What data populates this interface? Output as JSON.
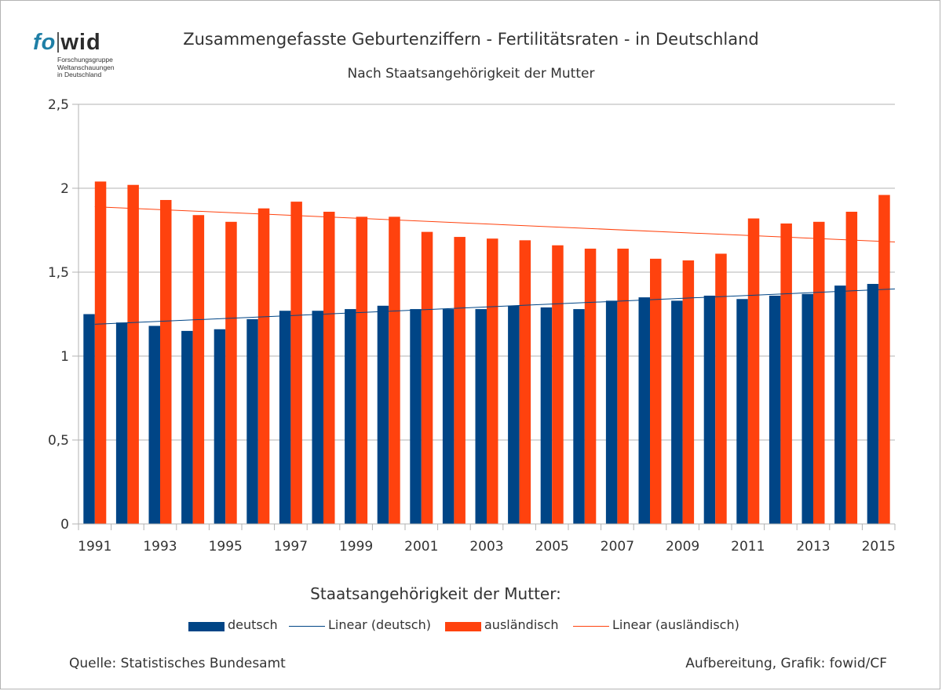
{
  "logo": {
    "fo": "fo",
    "wid": "wid",
    "line1": "Forschungsgruppe",
    "line2": "Weltanschauungen",
    "line3": "in Deutschland"
  },
  "header": {
    "title": "Zusammengefasste Geburtenziffern - Fertilitätsraten - in Deutschland",
    "subtitle": "Nach Staatsangehörigkeit der Mutter"
  },
  "legend": {
    "title": "Staatsangehörigkeit der Mutter:",
    "items": [
      "deutsch",
      "Linear (deutsch)",
      "ausländisch",
      "Linear (ausländisch)"
    ]
  },
  "footer": {
    "source": "Quelle: Statistisches Bundesamt",
    "credit": "Aufbereitung, Grafik: fowid/CF"
  },
  "colors": {
    "deutsch": "#004586",
    "auslaendisch": "#ff420e",
    "grid": "#b3b3b3"
  },
  "chart_data": {
    "type": "bar",
    "categories": [
      "1991",
      "1992",
      "1993",
      "1994",
      "1995",
      "1996",
      "1997",
      "1998",
      "1999",
      "2000",
      "2001",
      "2002",
      "2003",
      "2004",
      "2005",
      "2006",
      "2007",
      "2008",
      "2009",
      "2010",
      "2011",
      "2012",
      "2013",
      "2014",
      "2015"
    ],
    "x_tick_labels": [
      "1991",
      "1993",
      "1995",
      "1997",
      "1999",
      "2001",
      "2003",
      "2005",
      "2007",
      "2009",
      "2011",
      "2013",
      "2015"
    ],
    "y_tick_labels": [
      "0",
      "0,5",
      "1",
      "1,5",
      "2",
      "2,5"
    ],
    "ylim": [
      0,
      2.5
    ],
    "grid": true,
    "legend_position": "bottom",
    "series": [
      {
        "name": "deutsch",
        "values": [
          1.25,
          1.2,
          1.18,
          1.15,
          1.16,
          1.22,
          1.27,
          1.27,
          1.28,
          1.3,
          1.28,
          1.28,
          1.28,
          1.3,
          1.29,
          1.28,
          1.33,
          1.35,
          1.33,
          1.36,
          1.34,
          1.36,
          1.37,
          1.42,
          1.43
        ]
      },
      {
        "name": "ausländisch",
        "values": [
          2.04,
          2.02,
          1.93,
          1.84,
          1.8,
          1.88,
          1.92,
          1.86,
          1.83,
          1.83,
          1.74,
          1.71,
          1.7,
          1.69,
          1.66,
          1.64,
          1.64,
          1.58,
          1.57,
          1.61,
          1.82,
          1.79,
          1.8,
          1.86,
          1.96
        ]
      }
    ],
    "trendlines": [
      {
        "name": "Linear (deutsch)",
        "type": "linear",
        "start": 1.19,
        "end": 1.4
      },
      {
        "name": "Linear (ausländisch)",
        "type": "linear",
        "start": 1.89,
        "end": 1.68
      }
    ]
  }
}
